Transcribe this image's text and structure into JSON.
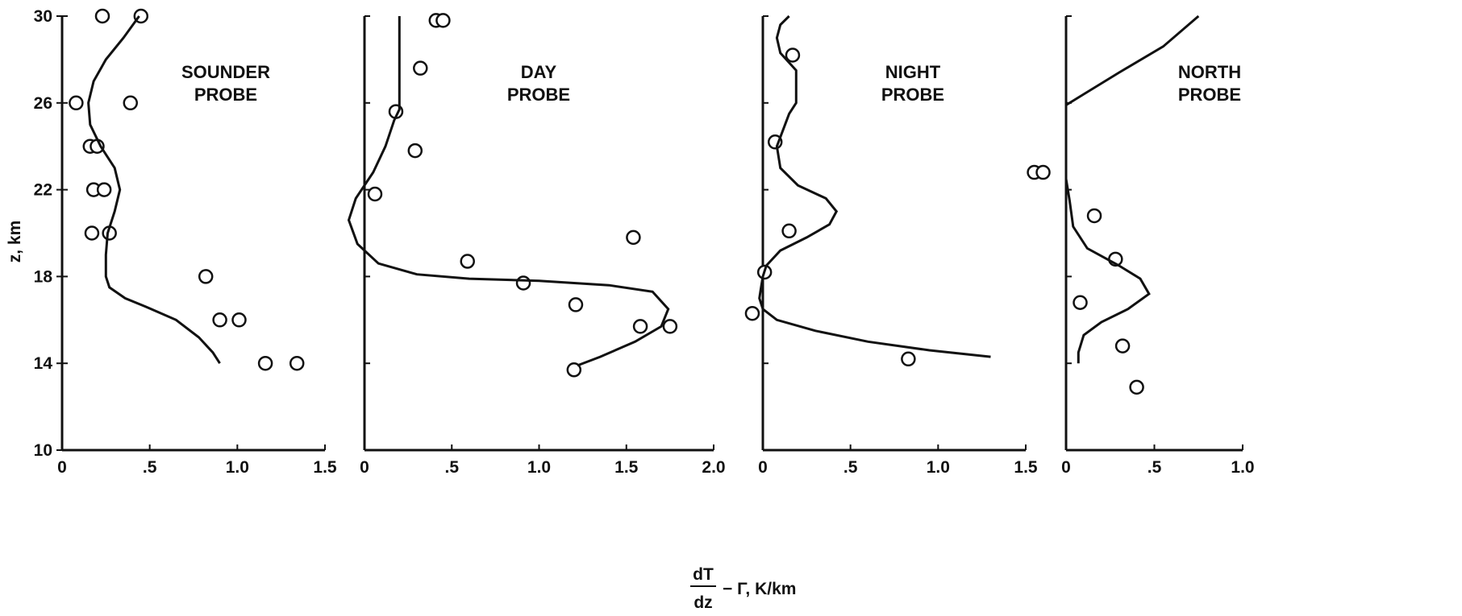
{
  "chart_data": [
    {
      "type": "scatter",
      "panel_label": [
        "SOUNDER",
        "PROBE"
      ],
      "xlabel": "",
      "ylabel": "z, km",
      "xlim": [
        0,
        1.5
      ],
      "ylim": [
        10,
        30
      ],
      "x_ticks": [
        0,
        0.5,
        1.0,
        1.5
      ],
      "x_tick_labels": [
        "0",
        ".5",
        "1.0",
        "1.5"
      ],
      "y_ticks": [
        10,
        14,
        18,
        22,
        26,
        30
      ],
      "y_tick_labels": [
        "10",
        "14",
        "18",
        "22",
        "26",
        "30"
      ],
      "series": [
        {
          "kind": "points",
          "x": [
            0.23,
            0.45,
            0.08,
            0.39,
            0.16,
            0.2,
            0.18,
            0.24,
            0.17,
            0.27,
            0.82,
            0.9,
            1.01,
            1.16,
            1.34
          ],
          "y": [
            30,
            30,
            26,
            26,
            24,
            24,
            22,
            22,
            20,
            20,
            18,
            16,
            16,
            14,
            14
          ]
        },
        {
          "kind": "curve",
          "x": [
            0.9,
            0.86,
            0.78,
            0.65,
            0.48,
            0.36,
            0.27,
            0.25,
            0.25,
            0.26,
            0.3,
            0.33,
            0.3,
            0.22,
            0.16,
            0.15,
            0.18,
            0.25,
            0.35,
            0.44
          ],
          "y": [
            14,
            14.5,
            15.2,
            16,
            16.6,
            17,
            17.5,
            18,
            19,
            20,
            21,
            22,
            23,
            24,
            25,
            26,
            27,
            28,
            29,
            30
          ]
        }
      ]
    },
    {
      "type": "scatter",
      "panel_label": [
        "DAY",
        "PROBE"
      ],
      "xlabel": "",
      "ylabel": "",
      "xlim": [
        0,
        2.0
      ],
      "ylim": [
        10,
        30
      ],
      "x_ticks": [
        0,
        0.5,
        1.0,
        1.5,
        2.0
      ],
      "x_tick_labels": [
        "0",
        ".5",
        "1.0",
        "1.5",
        "2.0"
      ],
      "y_ticks": [
        14,
        18,
        22,
        26,
        30
      ],
      "series": [
        {
          "kind": "points",
          "x": [
            0.41,
            0.45,
            0.32,
            0.18,
            0.29,
            0.06,
            1.54,
            0.59,
            0.91,
            1.21,
            1.58,
            1.75,
            1.2
          ],
          "y": [
            29.8,
            29.8,
            27.6,
            25.6,
            23.8,
            21.8,
            19.8,
            18.7,
            17.7,
            16.7,
            15.7,
            15.7,
            13.7
          ]
        },
        {
          "kind": "curve",
          "x": [
            1.22,
            1.35,
            1.55,
            1.7,
            1.74,
            1.65,
            1.4,
            1.0,
            0.6,
            0.3,
            0.08,
            -0.04,
            -0.09,
            -0.05,
            0.05,
            0.12,
            0.17,
            0.2,
            0.2,
            0.2,
            0.2
          ],
          "y": [
            13.9,
            14.3,
            15.0,
            15.7,
            16.5,
            17.3,
            17.6,
            17.8,
            17.9,
            18.1,
            18.6,
            19.5,
            20.6,
            21.6,
            22.8,
            24.0,
            25.2,
            25.7,
            27,
            29,
            30
          ]
        }
      ]
    },
    {
      "type": "scatter",
      "panel_label": [
        "NIGHT",
        "PROBE"
      ],
      "xlabel": "",
      "ylabel": "",
      "xlim": [
        0,
        1.5
      ],
      "ylim": [
        10,
        30
      ],
      "x_ticks": [
        0,
        0.5,
        1.0,
        1.5
      ],
      "x_tick_labels": [
        "0",
        ".5",
        "1.0",
        "1.5"
      ],
      "y_ticks": [
        14,
        18,
        22,
        26,
        30
      ],
      "series": [
        {
          "kind": "points",
          "x": [
            0.17,
            0.07,
            0.15,
            0.01,
            -0.06,
            0.83
          ],
          "y": [
            28.2,
            24.2,
            20.1,
            18.2,
            16.3,
            14.2
          ]
        },
        {
          "kind": "curve",
          "x": [
            1.3,
            0.95,
            0.6,
            0.3,
            0.08,
            0.0,
            -0.02,
            -0.01,
            0.0,
            0.02,
            0.1,
            0.25,
            0.38,
            0.42,
            0.36,
            0.2,
            0.1,
            0.08,
            0.15,
            0.19,
            0.19,
            0.1,
            0.08,
            0.1,
            0.15
          ],
          "y": [
            14.3,
            14.6,
            15.0,
            15.5,
            16.0,
            16.5,
            17.0,
            17.5,
            18.0,
            18.5,
            19.2,
            19.8,
            20.4,
            21.0,
            21.6,
            22.2,
            23.0,
            24.0,
            25.5,
            26.0,
            27.5,
            28.3,
            29.0,
            29.6,
            30.0
          ]
        }
      ]
    },
    {
      "type": "scatter",
      "panel_label": [
        "NORTH",
        "PROBE"
      ],
      "xlabel": "",
      "ylabel": "",
      "xlim": [
        0,
        1.0
      ],
      "ylim": [
        10,
        30
      ],
      "x_ticks": [
        0,
        0.5,
        1.0
      ],
      "x_tick_labels": [
        "0",
        ".5",
        "1.0"
      ],
      "y_ticks": [
        14,
        18,
        22,
        26,
        30
      ],
      "series": [
        {
          "kind": "points",
          "x": [
            -0.18,
            -0.13,
            0.16,
            0.28,
            0.08,
            0.32,
            0.4
          ],
          "y": [
            22.8,
            22.8,
            20.8,
            18.8,
            16.8,
            14.8,
            12.9
          ]
        },
        {
          "kind": "curve",
          "x": [
            0.07,
            0.07,
            0.1,
            0.2,
            0.35,
            0.47,
            0.42,
            0.3,
            0.12,
            0.04,
            0.02,
            0.0,
            0.0,
            0.0,
            0.0,
            0.1,
            0.3,
            0.55,
            0.75
          ],
          "y": [
            14.0,
            14.5,
            15.3,
            15.9,
            16.5,
            17.2,
            17.9,
            18.5,
            19.3,
            20.3,
            21.5,
            22.5,
            24.0,
            25.2,
            25.9,
            26.4,
            27.4,
            28.6,
            30.0
          ]
        }
      ]
    }
  ],
  "shared_xlabel": {
    "numerator": "dT",
    "denominator": "dz",
    "rest": "− Γ, K/km"
  }
}
